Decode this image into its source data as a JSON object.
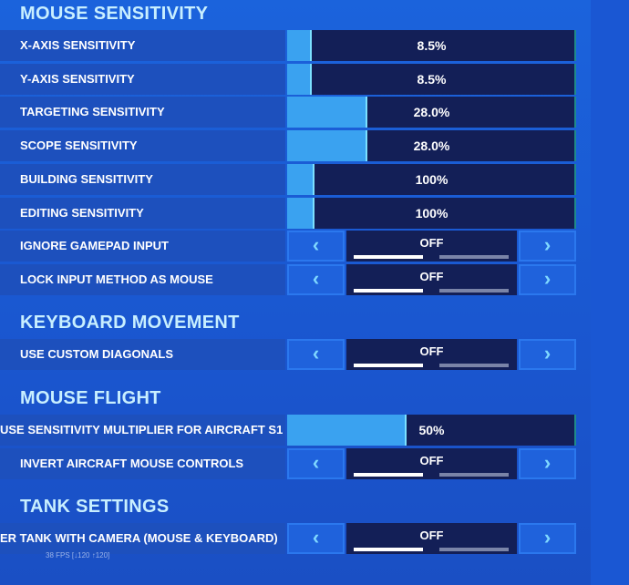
{
  "sections": [
    {
      "title": "MOUSE SENSITIVITY",
      "rows": [
        {
          "label": "X-AXIS SENSITIVITY",
          "control": "slider",
          "value": "8.5%"
        },
        {
          "label": "Y-AXIS SENSITIVITY",
          "control": "slider",
          "value": "8.5%"
        },
        {
          "label": "TARGETING SENSITIVITY",
          "control": "slider",
          "value": "28.0%"
        },
        {
          "label": "SCOPE SENSITIVITY",
          "control": "slider",
          "value": "28.0%"
        },
        {
          "label": "BUILDING SENSITIVITY",
          "control": "slider",
          "value": "100%"
        },
        {
          "label": "EDITING SENSITIVITY",
          "control": "slider",
          "value": "100%"
        },
        {
          "label": "IGNORE GAMEPAD INPUT",
          "control": "toggle",
          "value": "OFF"
        },
        {
          "label": "LOCK INPUT METHOD AS MOUSE",
          "control": "toggle",
          "value": "OFF"
        }
      ]
    },
    {
      "title": "KEYBOARD MOVEMENT",
      "rows": [
        {
          "label": "USE CUSTOM DIAGONALS",
          "control": "toggle",
          "value": "OFF"
        }
      ]
    },
    {
      "title": "MOUSE FLIGHT",
      "rows": [
        {
          "label": "USE SENSITIVITY MULTIPLIER FOR AIRCRAFT S1",
          "control": "slider",
          "value": "50%"
        },
        {
          "label": "INVERT AIRCRAFT MOUSE CONTROLS",
          "control": "toggle",
          "value": "OFF"
        }
      ]
    },
    {
      "title": "TANK SETTINGS",
      "rows": [
        {
          "label": "ER TANK WITH CAMERA (MOUSE & KEYBOARD)",
          "control": "toggle",
          "value": "OFF"
        }
      ]
    }
  ],
  "fps": "38 FPS [↓120 ↑120]"
}
